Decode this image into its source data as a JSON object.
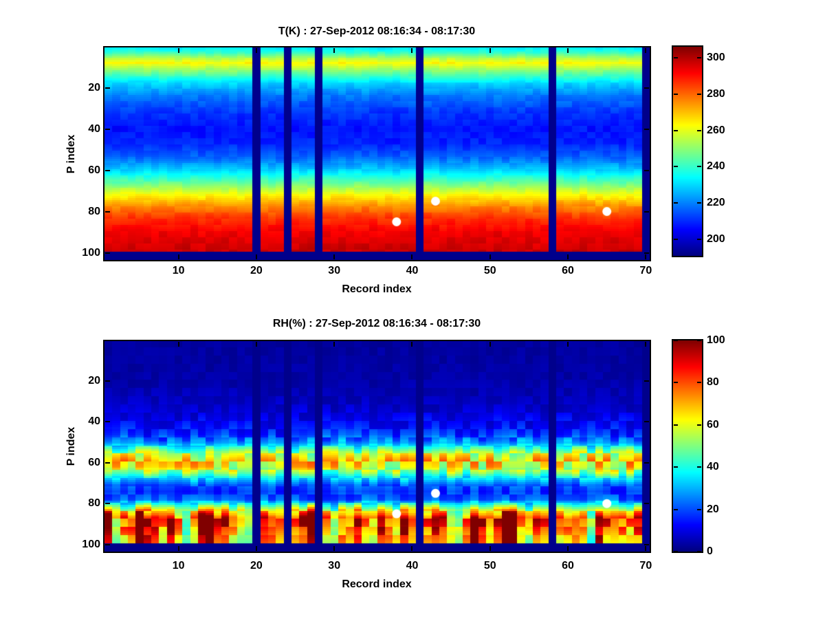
{
  "figure": {
    "background": "#ffffff",
    "missing_data_color": "#00008C",
    "marker_color": "#ffffff"
  },
  "chart_data": [
    {
      "type": "heatmap",
      "title": "T(K) : 27-Sep-2012 08:16:34 - 08:17:30",
      "xlabel": "Record index",
      "ylabel": "P index",
      "x_ticks": [
        10,
        20,
        30,
        40,
        50,
        60,
        70
      ],
      "y_ticks": [
        20,
        40,
        60,
        80,
        100
      ],
      "x_range": [
        0.5,
        70.5
      ],
      "y_range": [
        0.5,
        103.5
      ],
      "y_axis_reversed": true,
      "n_records": 70,
      "n_levels": 103,
      "colormap": "jet",
      "color_limits": [
        191,
        306
      ],
      "colorbar_ticks": [
        200,
        220,
        240,
        260,
        280,
        300
      ],
      "missing_records": [
        20,
        24,
        28,
        41,
        58,
        70
      ],
      "missing_levels_from": 100,
      "profile": {
        "p": [
          1,
          3,
          6,
          8,
          11,
          14,
          18,
          24,
          32,
          40,
          47,
          54,
          60,
          66,
          72,
          78,
          84,
          90,
          96,
          100
        ],
        "value": [
          233,
          240,
          255,
          263,
          252,
          242,
          229,
          219,
          211,
          207,
          209,
          217,
          229,
          245,
          263,
          277,
          287,
          293,
          296,
          298
        ]
      },
      "noise_amplitude": 2.5,
      "markers": {
        "color": "#ffffff",
        "points": [
          {
            "record": 38,
            "p_index": 85
          },
          {
            "record": 43,
            "p_index": 75
          },
          {
            "record": 65,
            "p_index": 80
          }
        ]
      }
    },
    {
      "type": "heatmap",
      "title": "RH(%) : 27-Sep-2012 08:16:34 - 08:17:30",
      "xlabel": "Record index",
      "ylabel": "P index",
      "x_ticks": [
        10,
        20,
        30,
        40,
        50,
        60,
        70
      ],
      "y_ticks": [
        20,
        40,
        60,
        80,
        100
      ],
      "x_range": [
        0.5,
        70.5
      ],
      "y_range": [
        0.5,
        103.5
      ],
      "y_axis_reversed": true,
      "n_records": 70,
      "n_levels": 103,
      "colormap": "jet",
      "color_limits": [
        0,
        100
      ],
      "colorbar_ticks": [
        0,
        20,
        40,
        60,
        80,
        100
      ],
      "missing_records": [
        20,
        24,
        28,
        41,
        58,
        70
      ],
      "missing_levels_from": 100,
      "profile": {
        "p": [
          1,
          20,
          30,
          36,
          42,
          46,
          50,
          53,
          56,
          59,
          62,
          65,
          68,
          71,
          74,
          78,
          81,
          84,
          88,
          92,
          96,
          100
        ],
        "value": [
          3,
          4,
          6,
          9,
          13,
          17,
          27,
          42,
          57,
          65,
          62,
          50,
          33,
          21,
          17,
          22,
          35,
          46,
          50,
          45,
          38,
          33
        ]
      },
      "upper_noise": 0.45,
      "band_noise": 0.25,
      "lower_noise": 0.3,
      "bottom_boost": {
        "start_p": 78,
        "full_p": 88,
        "intensity_by_record": [
          60,
          10,
          30,
          35,
          60,
          55,
          40,
          25,
          60,
          25,
          10,
          25,
          55,
          60,
          35,
          50,
          25,
          20,
          10,
          0,
          35,
          50,
          25,
          0,
          30,
          50,
          60,
          0,
          25,
          10,
          35,
          25,
          50,
          35,
          25,
          50,
          35,
          25,
          55,
          40,
          0,
          30,
          45,
          55,
          25,
          10,
          30,
          65,
          50,
          25,
          35,
          65,
          60,
          25,
          10,
          30,
          35,
          0,
          25,
          35,
          50,
          25,
          10,
          50,
          45,
          30,
          35,
          25,
          45,
          0
        ]
      },
      "markers": {
        "color": "#ffffff",
        "points": [
          {
            "record": 38,
            "p_index": 85
          },
          {
            "record": 43,
            "p_index": 75
          },
          {
            "record": 65,
            "p_index": 80
          }
        ]
      }
    }
  ]
}
